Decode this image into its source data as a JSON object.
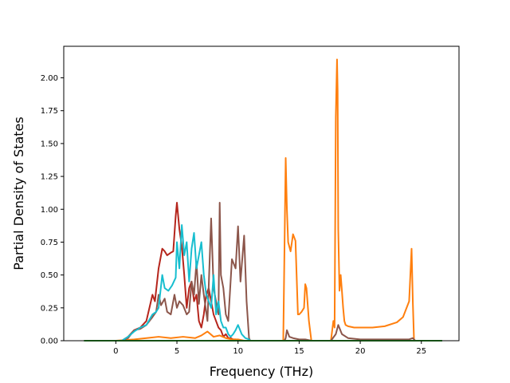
{
  "chart_data": {
    "type": "line",
    "title": "",
    "xlabel": "Frequency (THz)",
    "ylabel": "Partial Density of States",
    "xlim": [
      -4.26,
      28.08
    ],
    "ylim": [
      0,
      2.24
    ],
    "x_ticks": [
      0,
      5,
      10,
      15,
      20,
      25
    ],
    "x_tick_labels": [
      "0",
      "5",
      "10",
      "15",
      "20",
      "25"
    ],
    "y_ticks": [
      0,
      0.25,
      0.5,
      0.75,
      1.0,
      1.25,
      1.5,
      1.75,
      2.0
    ],
    "y_tick_labels": [
      "0.00",
      "0.25",
      "0.50",
      "0.75",
      "1.00",
      "1.25",
      "1.50",
      "1.75",
      "2.00"
    ],
    "grid": false,
    "legend": "none",
    "series": [
      {
        "color": "#b5251c",
        "x": [
          -2.6,
          0.5,
          1.0,
          1.5,
          2.0,
          2.5,
          3.0,
          3.2,
          3.5,
          3.8,
          4.0,
          4.2,
          4.5,
          4.7,
          4.9,
          5.0,
          5.2,
          5.4,
          5.6,
          5.8,
          6.0,
          6.2,
          6.4,
          6.6,
          6.8,
          7.0,
          7.2,
          7.4,
          7.6,
          7.8,
          8.0,
          8.2,
          8.4,
          8.6,
          8.8,
          9.0,
          9.2,
          9.4,
          9.6,
          9.8,
          10.0,
          10.3,
          10.6,
          10.9,
          11.0,
          26.7
        ],
        "y": [
          0,
          0.0,
          0.03,
          0.08,
          0.1,
          0.15,
          0.35,
          0.3,
          0.55,
          0.7,
          0.68,
          0.65,
          0.67,
          0.68,
          0.95,
          1.05,
          0.85,
          0.72,
          0.5,
          0.25,
          0.4,
          0.45,
          0.3,
          0.35,
          0.15,
          0.1,
          0.2,
          0.35,
          0.4,
          0.3,
          0.2,
          0.15,
          0.1,
          0.08,
          0.03,
          0.05,
          0.02,
          0.02,
          0.01,
          0.01,
          0.0,
          0.0,
          0.0,
          0.0,
          0.0,
          0
        ]
      },
      {
        "color": "#ff7f0e",
        "x": [
          -2.6,
          0.0,
          1.5,
          2.5,
          3.5,
          4.5,
          5.5,
          6.5,
          7.0,
          7.5,
          8.0,
          8.5,
          9.0,
          9.5,
          10.0,
          10.5,
          11.0,
          13.7,
          13.9,
          14.0,
          14.1,
          14.3,
          14.5,
          14.7,
          14.9,
          15.0,
          15.2,
          15.4,
          15.5,
          15.6,
          15.8,
          16.0,
          17.6,
          17.8,
          17.9,
          18.0,
          18.1,
          18.15,
          18.2,
          18.3,
          18.4,
          18.5,
          18.6,
          18.7,
          18.8,
          19.0,
          19.5,
          20.0,
          21.0,
          22.0,
          23.0,
          23.5,
          24.0,
          24.1,
          24.2,
          24.3,
          24.4,
          24.5,
          26.7
        ],
        "y": [
          0,
          0.0,
          0.01,
          0.02,
          0.03,
          0.02,
          0.03,
          0.02,
          0.04,
          0.07,
          0.03,
          0.04,
          0.02,
          0.01,
          0.01,
          0.0,
          0.0,
          0.0,
          1.39,
          1.0,
          0.75,
          0.68,
          0.81,
          0.76,
          0.2,
          0.2,
          0.22,
          0.25,
          0.43,
          0.4,
          0.15,
          0.0,
          0.0,
          0.15,
          0.1,
          1.7,
          2.14,
          1.9,
          0.85,
          0.38,
          0.5,
          0.38,
          0.25,
          0.15,
          0.12,
          0.11,
          0.1,
          0.1,
          0.1,
          0.11,
          0.14,
          0.18,
          0.3,
          0.5,
          0.7,
          0.3,
          0.0,
          0.0,
          0
        ]
      },
      {
        "color": "#8c564b",
        "x": [
          -2.6,
          0.5,
          1.0,
          1.5,
          2.0,
          2.5,
          3.0,
          3.3,
          3.5,
          3.7,
          4.0,
          4.2,
          4.5,
          4.8,
          5.0,
          5.2,
          5.5,
          5.8,
          6.0,
          6.2,
          6.4,
          6.6,
          6.8,
          7.0,
          7.2,
          7.5,
          7.8,
          8.0,
          8.2,
          8.4,
          8.5,
          8.6,
          8.8,
          9.0,
          9.2,
          9.5,
          9.8,
          10.0,
          10.2,
          10.5,
          10.7,
          10.9,
          11.0,
          13.8,
          13.9,
          14.0,
          14.2,
          14.5,
          15.0,
          15.5,
          16.0,
          17.6,
          18.0,
          18.2,
          18.5,
          19.0,
          20.0,
          23.5,
          24.0,
          24.3,
          24.5,
          26.7
        ],
        "y": [
          0,
          0.0,
          0.02,
          0.08,
          0.09,
          0.12,
          0.18,
          0.22,
          0.35,
          0.27,
          0.32,
          0.22,
          0.2,
          0.35,
          0.25,
          0.3,
          0.27,
          0.2,
          0.22,
          0.45,
          0.35,
          0.6,
          0.28,
          0.5,
          0.35,
          0.15,
          0.93,
          0.4,
          0.3,
          0.2,
          1.05,
          0.5,
          0.4,
          0.2,
          0.15,
          0.62,
          0.55,
          0.87,
          0.45,
          0.8,
          0.3,
          0.02,
          0.0,
          0.0,
          0.02,
          0.08,
          0.03,
          0.02,
          0.01,
          0.01,
          0.0,
          0.0,
          0.05,
          0.12,
          0.05,
          0.02,
          0.01,
          0.01,
          0.01,
          0.02,
          0.0,
          0
        ]
      },
      {
        "color": "#17becf",
        "x": [
          -2.6,
          0.5,
          1.0,
          1.5,
          2.0,
          2.5,
          3.0,
          3.3,
          3.5,
          3.8,
          4.0,
          4.3,
          4.6,
          4.9,
          5.0,
          5.2,
          5.4,
          5.6,
          5.8,
          6.0,
          6.2,
          6.4,
          6.6,
          6.8,
          7.0,
          7.2,
          7.4,
          7.6,
          7.8,
          8.0,
          8.2,
          8.4,
          8.6,
          8.8,
          9.0,
          9.2,
          9.4,
          9.6,
          9.8,
          10.0,
          10.3,
          10.6,
          10.9,
          11.0,
          26.7
        ],
        "y": [
          0,
          0.0,
          0.03,
          0.07,
          0.1,
          0.12,
          0.2,
          0.22,
          0.25,
          0.5,
          0.4,
          0.38,
          0.42,
          0.48,
          0.75,
          0.55,
          0.88,
          0.65,
          0.75,
          0.45,
          0.7,
          0.82,
          0.55,
          0.65,
          0.75,
          0.5,
          0.35,
          0.3,
          0.25,
          0.5,
          0.2,
          0.3,
          0.15,
          0.1,
          0.1,
          0.05,
          0.03,
          0.05,
          0.08,
          0.12,
          0.05,
          0.02,
          0.01,
          0.0,
          0
        ]
      },
      {
        "color": "#2ca02c",
        "x": [
          -2.6,
          26.7
        ],
        "y": [
          0,
          0
        ]
      }
    ]
  }
}
